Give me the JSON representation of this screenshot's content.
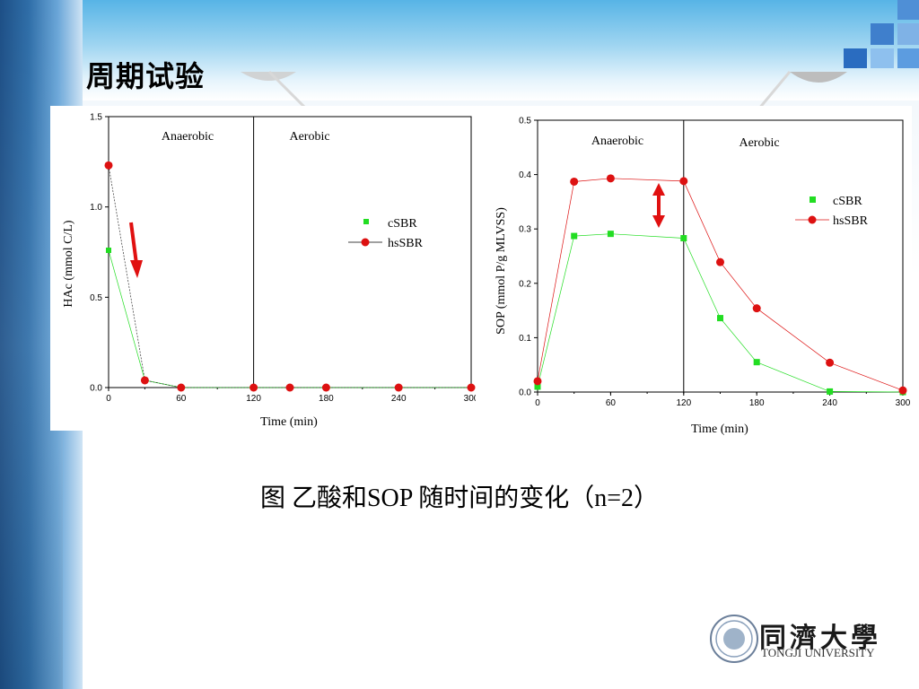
{
  "slide": {
    "title": "周期试验",
    "caption": "图 乙酸和SOP 随时间的变化（n=2）",
    "logo_name": "同濟大學",
    "logo_english": "TONGJI UNIVERSITY"
  },
  "colors": {
    "cSBR": "#22dd22",
    "hsSBR": "#dd1111",
    "arrow": "#e01010"
  },
  "chart_data": [
    {
      "type": "scatter",
      "ylabel": "HAc (mmol C/L)",
      "xlabel": "Time (min)",
      "xlim": [
        0,
        300
      ],
      "ylim": [
        0,
        1.5
      ],
      "xticks": [
        "0",
        "60",
        "120",
        "180",
        "240",
        "300"
      ],
      "yticks": [
        "0.0",
        "0.5",
        "1.0",
        "1.5"
      ],
      "phase_divider_x": 120,
      "phases": [
        "Anaerobic",
        "Aerobic"
      ],
      "legend_position": "center-right",
      "annotation": "down arrow near initial HAc drop",
      "series": [
        {
          "name": "cSBR",
          "x": [
            0,
            30,
            60,
            120,
            150,
            180,
            240,
            300
          ],
          "y": [
            0.76,
            0.04,
            0.0,
            0.0,
            0.0,
            0.0,
            0.0,
            0.0
          ]
        },
        {
          "name": "hsSBR",
          "x": [
            0,
            30,
            60,
            120,
            150,
            180,
            240,
            300
          ],
          "y": [
            1.23,
            0.04,
            0.0,
            0.0,
            0.0,
            0.0,
            0.0,
            0.0
          ]
        }
      ]
    },
    {
      "type": "scatter",
      "ylabel": "SOP (mmol P/g MLVSS)",
      "xlabel": "Time (min)",
      "xlim": [
        0,
        300
      ],
      "ylim": [
        0,
        0.5
      ],
      "xticks": [
        "0",
        "60",
        "120",
        "180",
        "240",
        "300"
      ],
      "yticks": [
        "0.0",
        "0.1",
        "0.2",
        "0.3",
        "0.4",
        "0.5"
      ],
      "phase_divider_x": 120,
      "phases": [
        "Anaerobic",
        "Aerobic"
      ],
      "legend_position": "top-right",
      "annotation": "double-headed arrow between series at ~100 min",
      "series": [
        {
          "name": "cSBR",
          "x": [
            0,
            30,
            60,
            120,
            150,
            180,
            240,
            300
          ],
          "y": [
            0.01,
            0.287,
            0.291,
            0.283,
            0.136,
            0.055,
            0.001,
            0.0
          ]
        },
        {
          "name": "hsSBR",
          "x": [
            0,
            30,
            60,
            120,
            150,
            180,
            240,
            300
          ],
          "y": [
            0.02,
            0.387,
            0.393,
            0.388,
            0.239,
            0.154,
            0.054,
            0.003
          ]
        }
      ]
    }
  ]
}
